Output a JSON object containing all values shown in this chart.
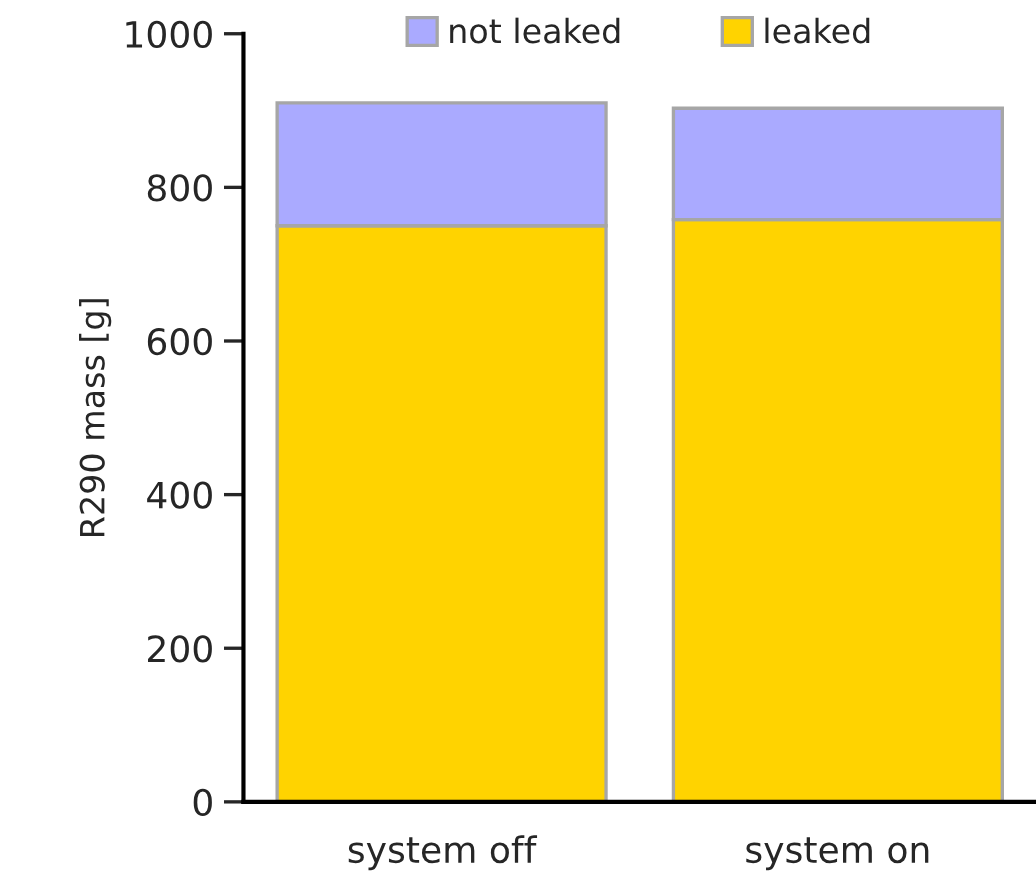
{
  "chart_data": {
    "type": "bar",
    "stacked": true,
    "ylabel": "R290 mass [g]",
    "categories": [
      "system off",
      "system on"
    ],
    "series": [
      {
        "name": "leaked",
        "color": "#ffd300",
        "values": [
          750,
          758
        ]
      },
      {
        "name": "not leaked",
        "color": "#aaaaff",
        "values": [
          160,
          145
        ]
      }
    ],
    "ylim": [
      0,
      1000
    ],
    "yticks": [
      0,
      200,
      400,
      600,
      800,
      1000
    ],
    "legend": "top",
    "grid": false
  }
}
